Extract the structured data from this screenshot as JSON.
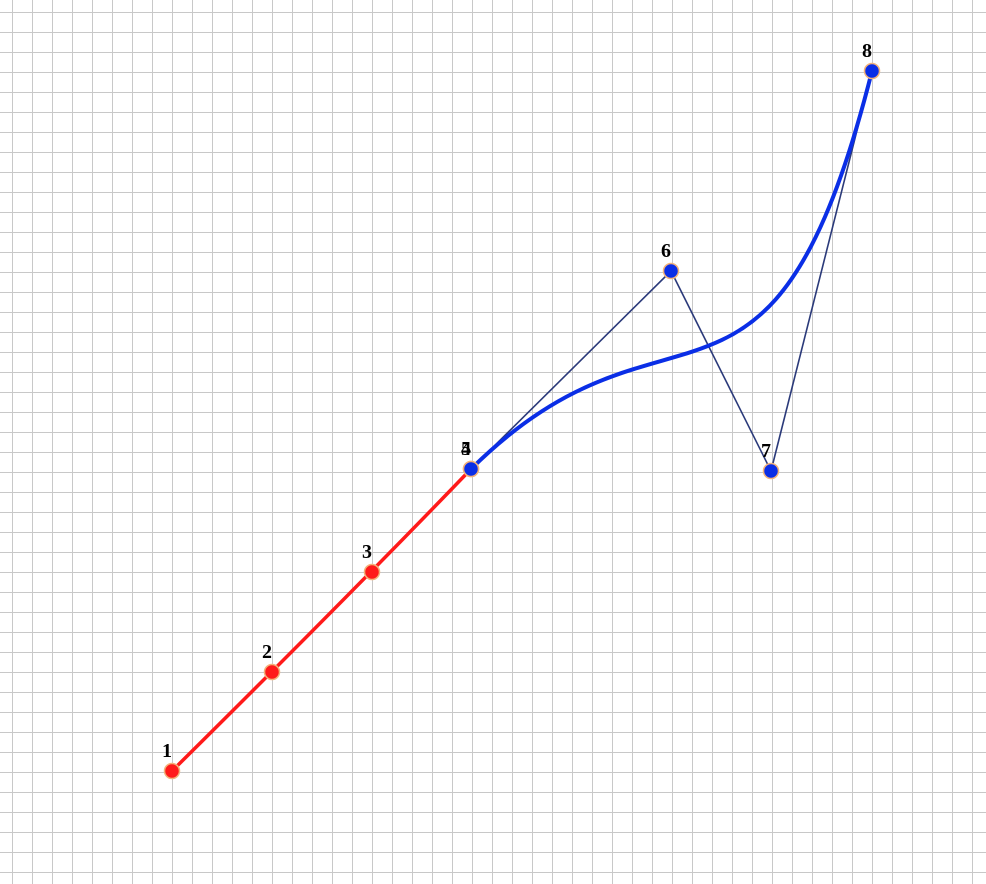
{
  "canvas": {
    "background": "#ffffff",
    "grid_color": "#c8c8c8"
  },
  "first_curve": {
    "color": "#ff1a1a",
    "point_ids": [
      "1",
      "2",
      "3",
      "4"
    ]
  },
  "second_curve": {
    "color": "#0a2ee6",
    "point_ids": [
      "5",
      "6",
      "7",
      "8"
    ]
  },
  "control_polygon": {
    "color": "#2b3a7a"
  },
  "point_outline_color": "#f2b27a",
  "points": [
    {
      "id": "1",
      "label": "1",
      "curve": "first"
    },
    {
      "id": "2",
      "label": "2",
      "curve": "first"
    },
    {
      "id": "3",
      "label": "3",
      "curve": "first"
    },
    {
      "id": "4",
      "label": "4",
      "curve": "first"
    },
    {
      "id": "5",
      "label": "5",
      "curve": "second"
    },
    {
      "id": "6",
      "label": "6",
      "curve": "second"
    },
    {
      "id": "7",
      "label": "7",
      "curve": "second"
    },
    {
      "id": "8",
      "label": "8",
      "curve": "second"
    }
  ]
}
